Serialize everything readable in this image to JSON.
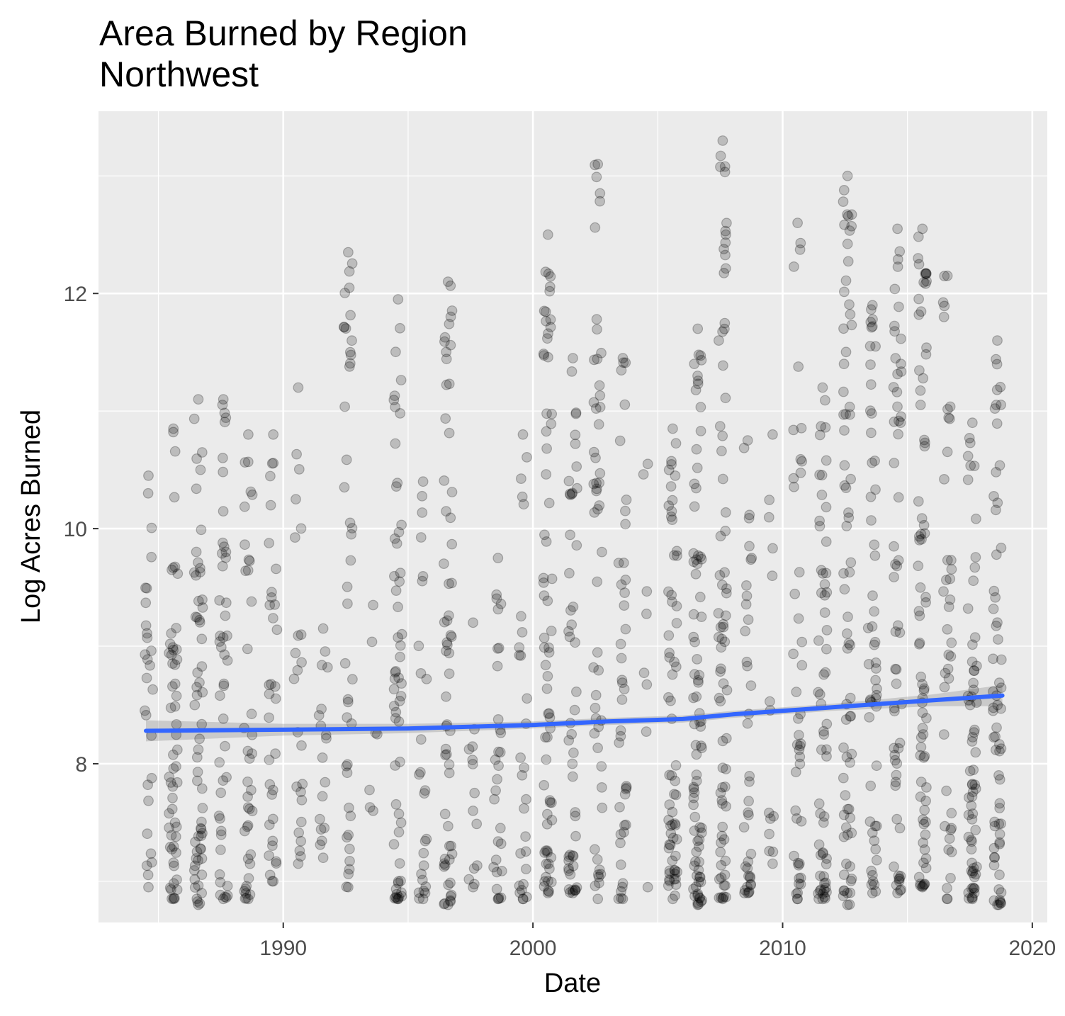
{
  "title": "Area Burned by Region",
  "subtitle": "Northwest",
  "chart_data": {
    "type": "scatter",
    "title": "Area Burned by Region",
    "subtitle": "Northwest",
    "xlabel": "Date",
    "ylabel": "Log Acres Burned",
    "xlim": [
      1982.6,
      2020.6
    ],
    "ylim": [
      6.65,
      13.55
    ],
    "x_ticks": [
      1990,
      2000,
      2010,
      2020
    ],
    "x_tick_labels": [
      "1990",
      "2000",
      "2010",
      "2020"
    ],
    "y_ticks": [
      8,
      10,
      12
    ],
    "y_tick_labels": [
      "8",
      "10",
      "12"
    ],
    "grid": true,
    "legend": "none",
    "point_color": "#000000",
    "point_alpha": 0.2,
    "background_color": "#EBEBEB",
    "gridline_color": "#FFFFFF",
    "trend": {
      "method": "smooth",
      "color": "#3366FF",
      "ribbon_color": "#999999",
      "x": [
        1984.5,
        1990,
        1995,
        2000,
        2003,
        2006,
        2008,
        2010,
        2012,
        2014,
        2016,
        2018.8
      ],
      "y": [
        8.28,
        8.29,
        8.3,
        8.33,
        8.36,
        8.38,
        8.42,
        8.45,
        8.48,
        8.51,
        8.54,
        8.58
      ],
      "ribbon_halfwidth": [
        0.09,
        0.05,
        0.04,
        0.03,
        0.03,
        0.03,
        0.03,
        0.03,
        0.03,
        0.04,
        0.05,
        0.09
      ]
    },
    "point_clusters": [
      {
        "x": 1984.6,
        "ymin": 6.95,
        "ymax": 10.45,
        "n": 26
      },
      {
        "x": 1985.6,
        "ymin": 6.85,
        "ymax": 10.85,
        "n": 55
      },
      {
        "x": 1986.6,
        "ymin": 6.8,
        "ymax": 11.1,
        "n": 58
      },
      {
        "x": 1987.6,
        "ymin": 6.85,
        "ymax": 11.1,
        "n": 44
      },
      {
        "x": 1988.6,
        "ymin": 6.85,
        "ymax": 10.8,
        "n": 38
      },
      {
        "x": 1989.6,
        "ymin": 7.0,
        "ymax": 10.8,
        "n": 32
      },
      {
        "x": 1990.6,
        "ymin": 7.15,
        "ymax": 11.2,
        "n": 22
      },
      {
        "x": 1991.6,
        "ymin": 7.2,
        "ymax": 9.15,
        "n": 16
      },
      {
        "x": 1992.6,
        "ymin": 6.95,
        "ymax": 12.35,
        "n": 40
      },
      {
        "x": 1993.6,
        "ymin": 7.6,
        "ymax": 9.35,
        "n": 5
      },
      {
        "x": 1994.6,
        "ymin": 6.85,
        "ymax": 11.95,
        "n": 55
      },
      {
        "x": 1995.6,
        "ymin": 6.85,
        "ymax": 10.4,
        "n": 24
      },
      {
        "x": 1996.6,
        "ymin": 6.8,
        "ymax": 12.1,
        "n": 58
      },
      {
        "x": 1997.6,
        "ymin": 6.95,
        "ymax": 9.2,
        "n": 12
      },
      {
        "x": 1998.6,
        "ymin": 6.85,
        "ymax": 9.75,
        "n": 28
      },
      {
        "x": 1999.6,
        "ymin": 6.85,
        "ymax": 10.8,
        "n": 26
      },
      {
        "x": 2000.6,
        "ymin": 6.9,
        "ymax": 12.5,
        "n": 66
      },
      {
        "x": 2001.6,
        "ymin": 6.9,
        "ymax": 11.45,
        "n": 48
      },
      {
        "x": 2002.6,
        "ymin": 6.85,
        "ymax": 13.1,
        "n": 50
      },
      {
        "x": 2003.6,
        "ymin": 6.85,
        "ymax": 11.45,
        "n": 40
      },
      {
        "x": 2004.6,
        "ymin": 6.95,
        "ymax": 10.55,
        "n": 6
      },
      {
        "x": 2005.6,
        "ymin": 6.85,
        "ymax": 10.85,
        "n": 62
      },
      {
        "x": 2006.6,
        "ymin": 6.8,
        "ymax": 11.7,
        "n": 80
      },
      {
        "x": 2007.6,
        "ymin": 6.85,
        "ymax": 13.3,
        "n": 72
      },
      {
        "x": 2008.6,
        "ymin": 6.9,
        "ymax": 10.75,
        "n": 36
      },
      {
        "x": 2009.6,
        "ymin": 7.15,
        "ymax": 10.8,
        "n": 12
      },
      {
        "x": 2010.6,
        "ymin": 6.85,
        "ymax": 12.6,
        "n": 42
      },
      {
        "x": 2011.6,
        "ymin": 6.85,
        "ymax": 11.2,
        "n": 58
      },
      {
        "x": 2012.6,
        "ymin": 6.8,
        "ymax": 13.0,
        "n": 70
      },
      {
        "x": 2013.6,
        "ymin": 6.9,
        "ymax": 11.9,
        "n": 52
      },
      {
        "x": 2014.6,
        "ymin": 6.9,
        "ymax": 12.55,
        "n": 56
      },
      {
        "x": 2015.6,
        "ymin": 6.95,
        "ymax": 12.55,
        "n": 74
      },
      {
        "x": 2016.6,
        "ymin": 6.85,
        "ymax": 12.15,
        "n": 38
      },
      {
        "x": 2017.6,
        "ymin": 6.85,
        "ymax": 10.9,
        "n": 64
      },
      {
        "x": 2018.6,
        "ymin": 6.8,
        "ymax": 11.6,
        "n": 62
      }
    ]
  }
}
